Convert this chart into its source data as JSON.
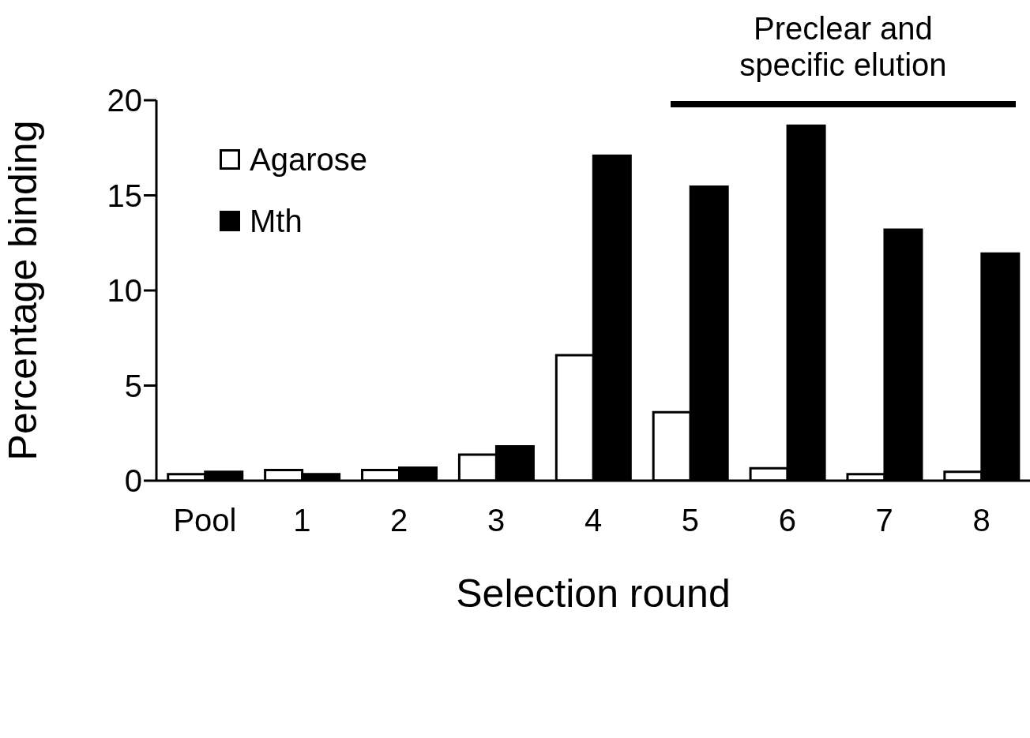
{
  "chart_data": {
    "type": "bar",
    "xlabel": "Selection round",
    "ylabel": "Percentage binding",
    "categories": [
      "Pool",
      "1",
      "2",
      "3",
      "4",
      "5",
      "6",
      "7",
      "8"
    ],
    "series": [
      {
        "name": "Agarose",
        "color": "#ffffff",
        "values": [
          0.34,
          0.56,
          0.56,
          1.37,
          6.6,
          3.6,
          0.65,
          0.34,
          0.47
        ]
      },
      {
        "name": "Mth",
        "color": "#000000",
        "values": [
          0.47,
          0.34,
          0.68,
          1.8,
          17.08,
          15.46,
          18.66,
          13.19,
          11.94
        ]
      }
    ],
    "ylim": [
      0,
      20
    ],
    "yticks": [
      0,
      5,
      10,
      15,
      20
    ],
    "legend": "top left",
    "annotations": [
      "Preclear and specific elution"
    ]
  }
}
